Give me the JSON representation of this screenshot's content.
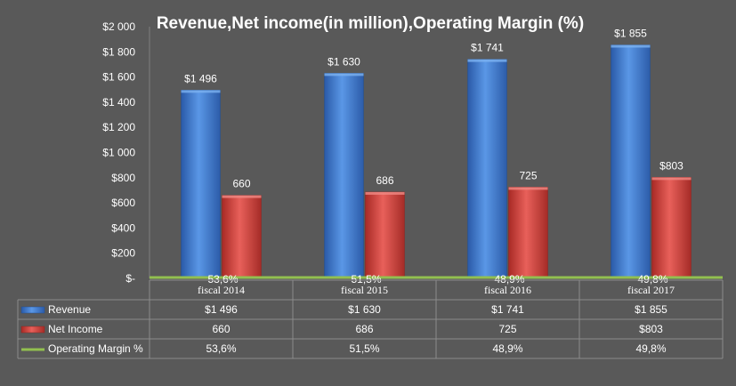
{
  "chart_data": {
    "type": "bar",
    "title": "Revenue,Net income(in million),Operating Margin (%)",
    "categories": [
      "fiscal 2014",
      "fiscal 2015",
      "fiscal 2016",
      "fiscal 2017"
    ],
    "ylim": [
      0,
      2000
    ],
    "yticks": [
      0,
      200,
      400,
      600,
      800,
      1000,
      1200,
      1400,
      1600,
      1800,
      2000
    ],
    "ytick_labels": [
      "$-",
      "$200",
      "$400",
      "$600",
      "$800",
      "$1 000",
      "$1 200",
      "$1 400",
      "$1 600",
      "$1 800",
      "$2 000"
    ],
    "grid": false,
    "series": [
      {
        "name": "Revenue",
        "kind": "bar",
        "color": "#3a77d0",
        "values": [
          1496,
          1630,
          1741,
          1855
        ],
        "labels": [
          "$1 496",
          "$1 630",
          "$1 741",
          "$1 855"
        ],
        "table_values": [
          "$1 496",
          "$1 630",
          "$1 741",
          "$1 855"
        ]
      },
      {
        "name": "Net Income",
        "kind": "bar",
        "color": "#d7403a",
        "values": [
          660,
          686,
          725,
          803
        ],
        "labels": [
          "660",
          "686",
          "725",
          "$803"
        ],
        "table_values": [
          "660",
          "686",
          "725",
          "$803"
        ]
      },
      {
        "name": "Operating Margin %",
        "kind": "line",
        "color": "#92c050",
        "values": [
          53.6,
          51.5,
          48.9,
          49.8
        ],
        "labels": [
          "53,6%",
          "51,5%",
          "48,9%",
          "49,8%"
        ],
        "table_values": [
          "53,6%",
          "51,5%",
          "48,9%",
          "49,8%"
        ]
      }
    ],
    "legend": "data-table"
  }
}
